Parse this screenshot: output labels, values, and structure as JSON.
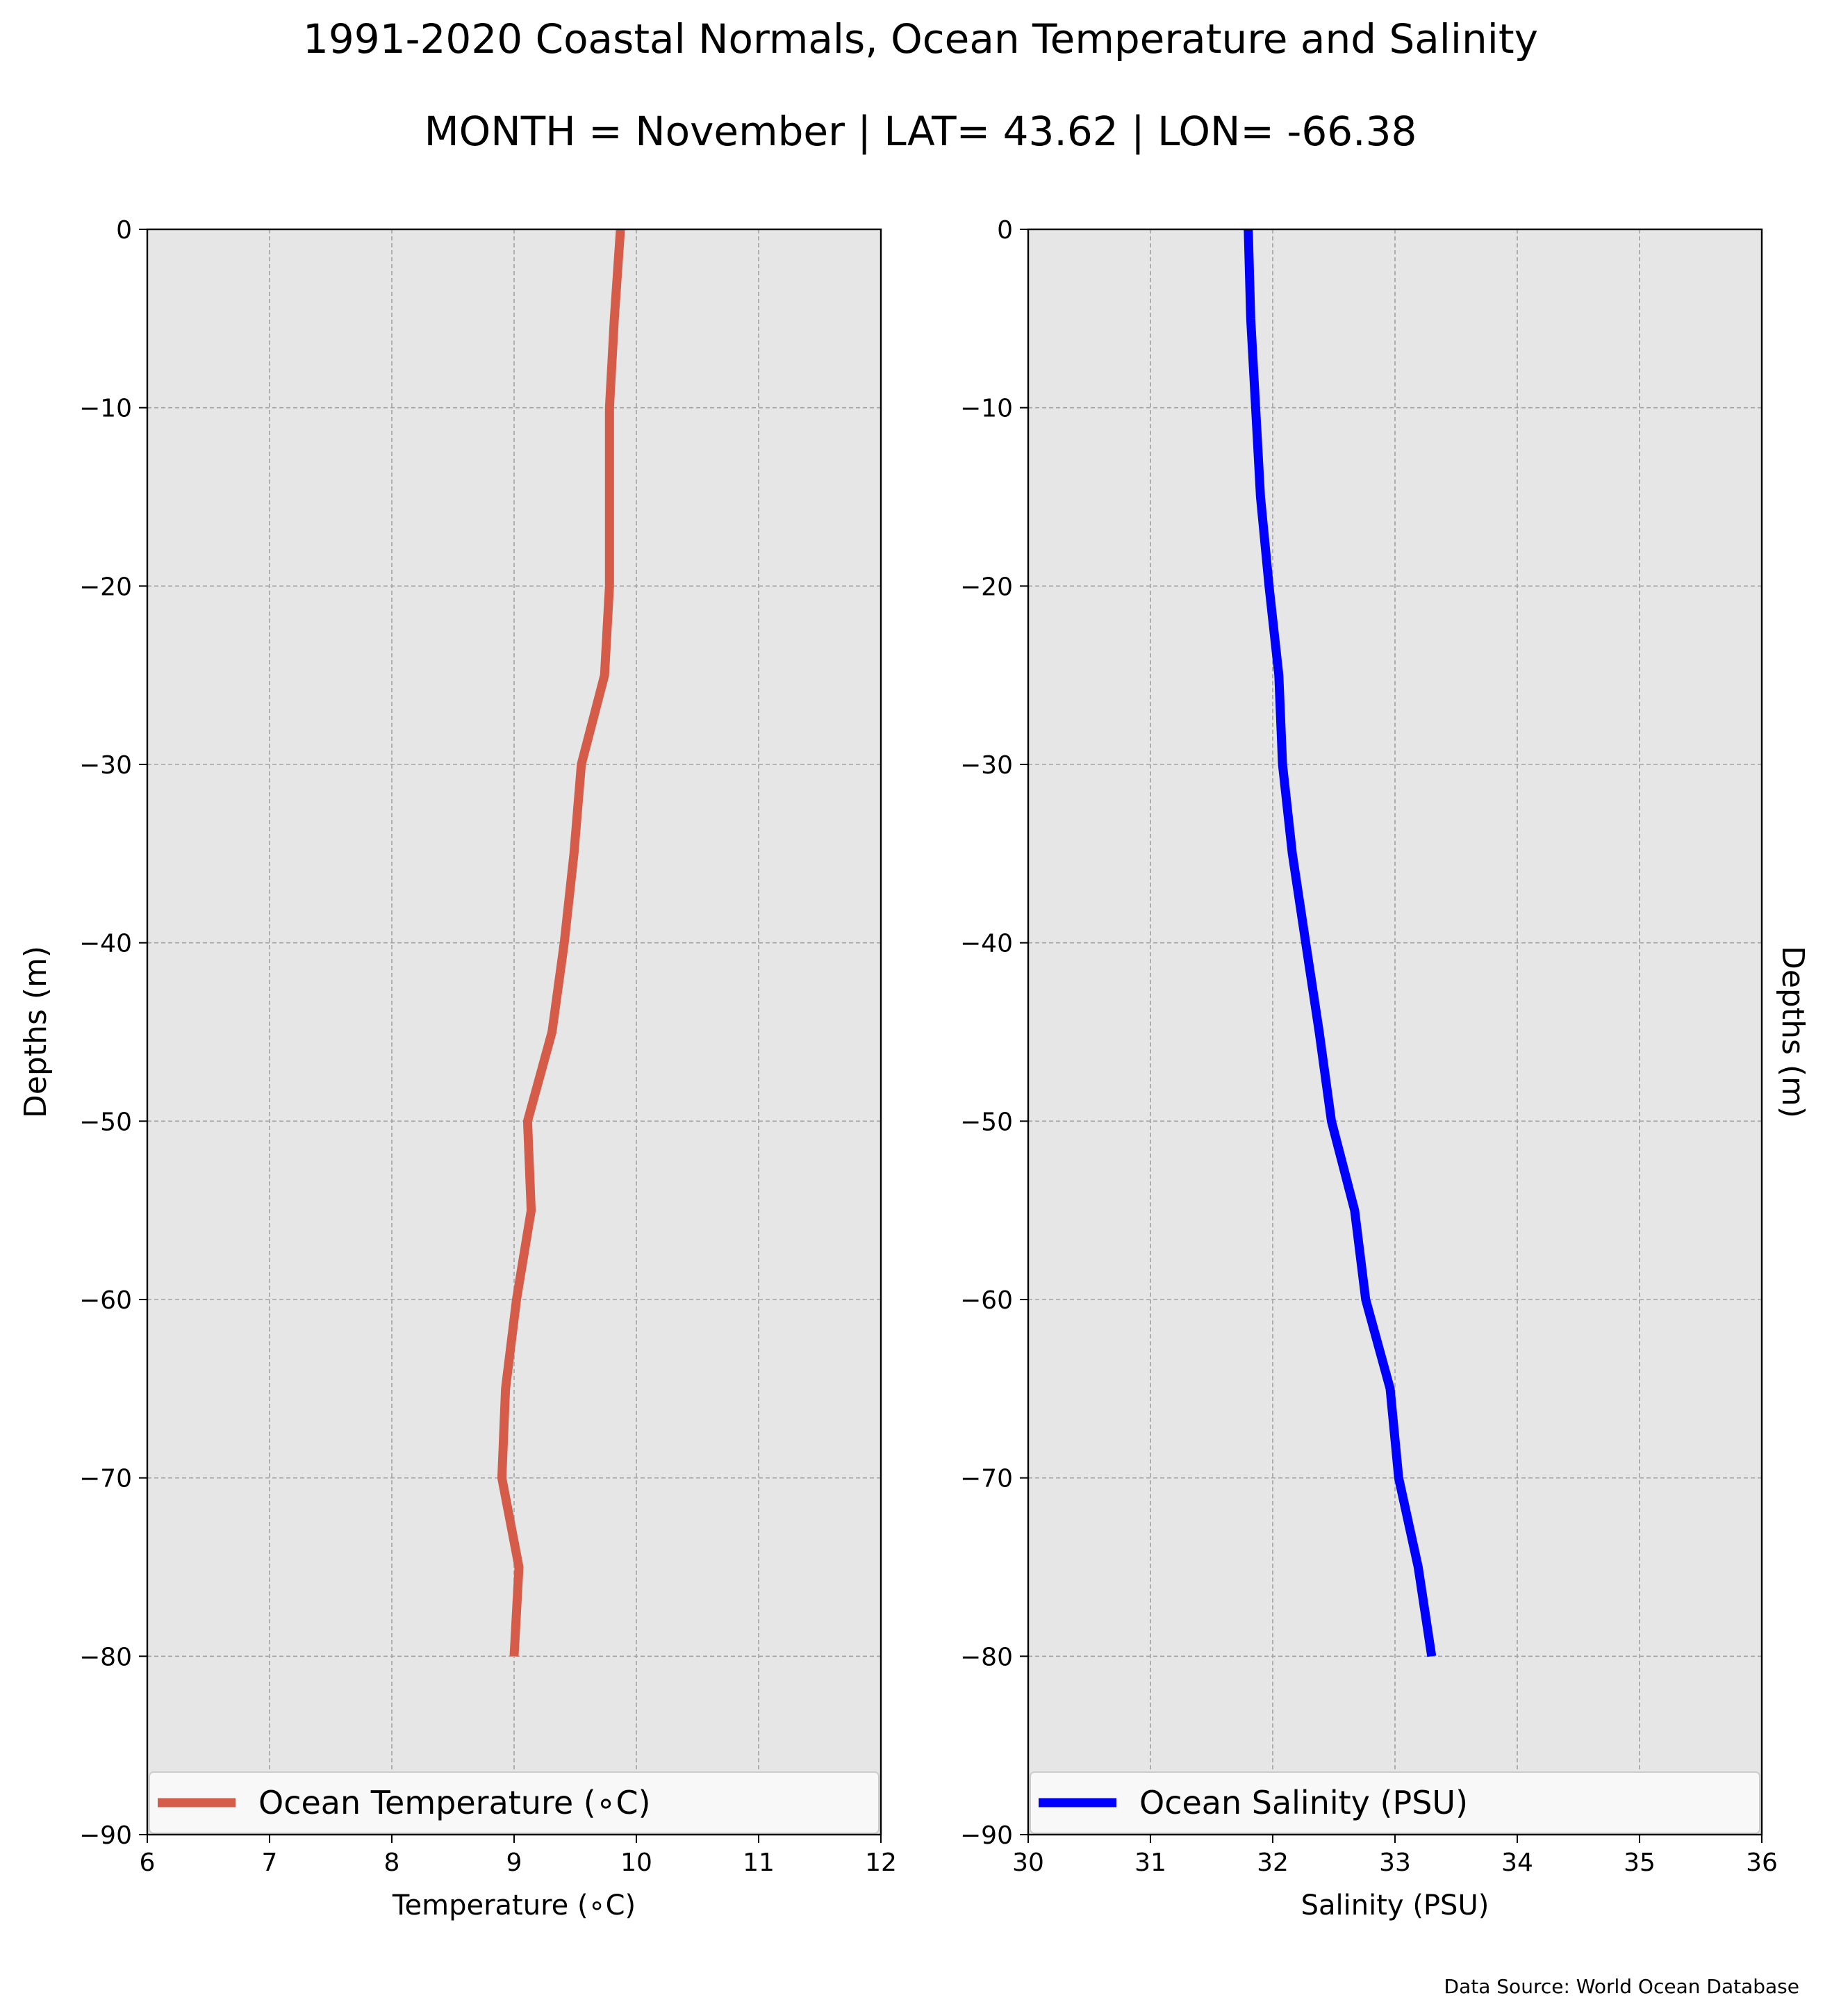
{
  "figure": {
    "title": "1991-2020 Coastal Normals, Ocean Temperature and Salinity",
    "subtitle": "MONTH = November | LAT= 43.62 | LON= -66.38",
    "source": "Data Source: World Ocean Database",
    "background_color": "#e6e6e6"
  },
  "chart_data": [
    {
      "type": "line",
      "xlabel": "Temperature ($^\\circ$C)",
      "xlabel_display": "Temperature (∘C)",
      "ylabel": "Depths (m)",
      "ylabel_position": "left",
      "xlim": [
        6,
        12
      ],
      "ylim": [
        -90,
        0
      ],
      "xticks": [
        "6",
        "7",
        "8",
        "9",
        "10",
        "11",
        "12"
      ],
      "yticks": [
        "0",
        "−10",
        "−20",
        "−30",
        "−40",
        "−50",
        "−60",
        "−70",
        "−80",
        "−90"
      ],
      "grid": true,
      "legend_position": "bottom",
      "series": [
        {
          "name": "Ocean Temperature (∘C)",
          "color": "#d65c4a",
          "x": [
            9.87,
            9.82,
            9.78,
            9.78,
            9.78,
            9.74,
            9.55,
            9.49,
            9.41,
            9.31,
            9.11,
            9.14,
            9.02,
            8.93,
            8.9,
            9.04,
            9.0
          ],
          "y": [
            0,
            -5,
            -10,
            -15,
            -20,
            -25,
            -30,
            -35,
            -40,
            -45,
            -50,
            -55,
            -60,
            -65,
            -70,
            -75,
            -80
          ]
        }
      ]
    },
    {
      "type": "line",
      "xlabel": "Salinity (PSU)",
      "ylabel": "Depths (m)",
      "ylabel_position": "right",
      "xlim": [
        30,
        36
      ],
      "ylim": [
        -90,
        0
      ],
      "xticks": [
        "30",
        "31",
        "32",
        "33",
        "34",
        "35",
        "36"
      ],
      "yticks": [
        "0",
        "−10",
        "−20",
        "−30",
        "−40",
        "−50",
        "−60",
        "−70",
        "−80",
        "−90"
      ],
      "grid": true,
      "legend_position": "bottom",
      "series": [
        {
          "name": "Ocean Salinity (PSU)",
          "color": "#0000ff",
          "x": [
            31.8,
            31.82,
            31.86,
            31.9,
            31.97,
            32.05,
            32.08,
            32.16,
            32.27,
            32.38,
            32.48,
            32.67,
            32.76,
            32.96,
            33.03,
            33.19,
            33.3
          ],
          "y": [
            0,
            -5,
            -10,
            -15,
            -20,
            -25,
            -30,
            -35,
            -40,
            -45,
            -50,
            -55,
            -60,
            -65,
            -70,
            -75,
            -80
          ]
        }
      ]
    }
  ]
}
